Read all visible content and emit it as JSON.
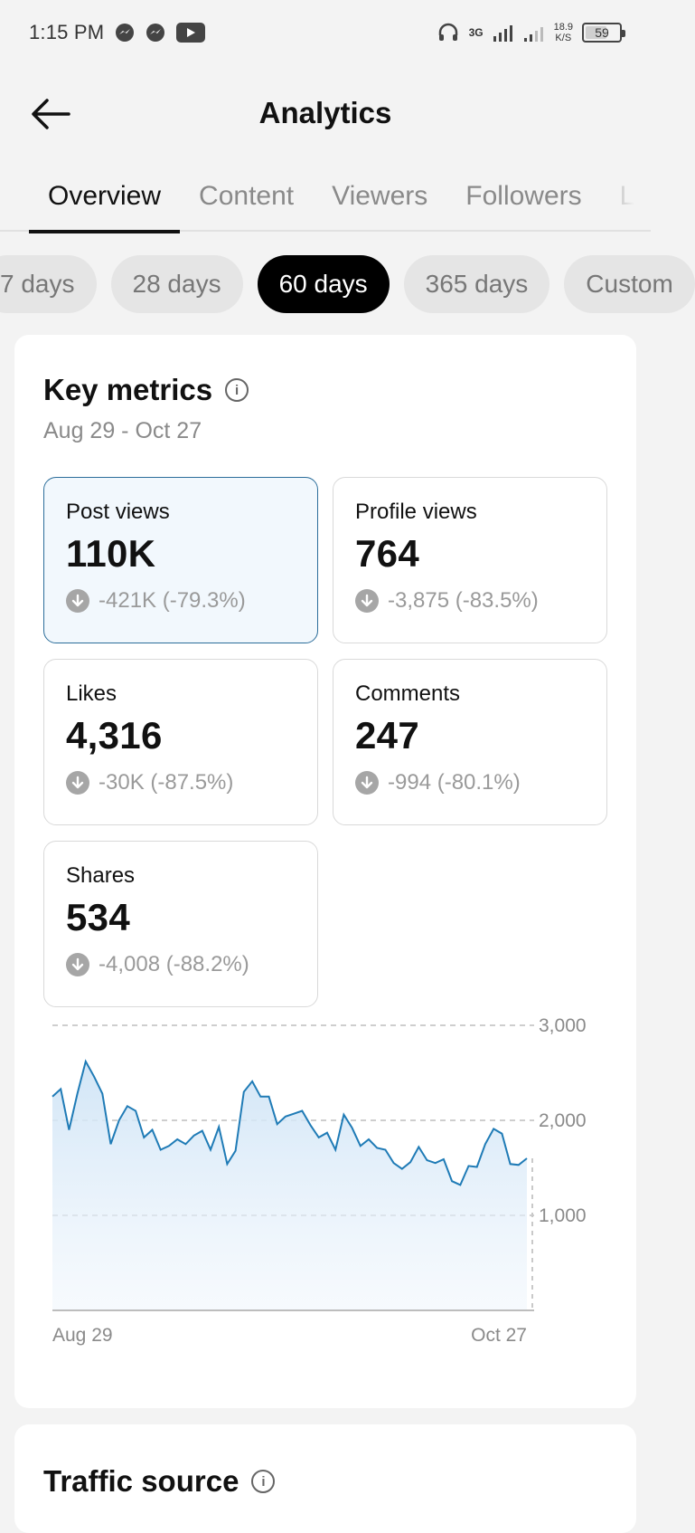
{
  "status_bar": {
    "time": "1:15 PM",
    "network": "3G",
    "net_speed_value": "18.9",
    "net_speed_unit": "K/S",
    "battery": "59"
  },
  "header": {
    "title": "Analytics"
  },
  "tabs": [
    {
      "label": "Overview",
      "active": true
    },
    {
      "label": "Content",
      "active": false
    },
    {
      "label": "Viewers",
      "active": false
    },
    {
      "label": "Followers",
      "active": false
    },
    {
      "label": "L",
      "active": false
    }
  ],
  "ranges": [
    {
      "label": "7 days",
      "active": false
    },
    {
      "label": "28 days",
      "active": false
    },
    {
      "label": "60 days",
      "active": true
    },
    {
      "label": "365 days",
      "active": false
    },
    {
      "label": "Custom",
      "active": false
    }
  ],
  "key_metrics": {
    "title": "Key metrics",
    "date_range": "Aug 29 - Oct 27",
    "items": [
      {
        "label": "Post views",
        "value": "110K",
        "change": "-421K (-79.3%)"
      },
      {
        "label": "Profile views",
        "value": "764",
        "change": "-3,875 (-83.5%)"
      },
      {
        "label": "Likes",
        "value": "4,316",
        "change": "-30K (-87.5%)"
      },
      {
        "label": "Comments",
        "value": "247",
        "change": "-994 (-80.1%)"
      },
      {
        "label": "Shares",
        "value": "534",
        "change": "-4,008 (-88.2%)"
      }
    ]
  },
  "chart_data": {
    "type": "area",
    "title": "",
    "xlabel": "",
    "ylabel": "",
    "x_start_label": "Aug 29",
    "x_end_label": "Oct 27",
    "ylim": [
      0,
      3000
    ],
    "yticks": [
      "3,000",
      "2,000",
      "1,000"
    ],
    "grid": true,
    "color": "#1f7bb6",
    "values": [
      2250,
      2330,
      1900,
      2280,
      2620,
      2460,
      2280,
      1750,
      2000,
      2150,
      2100,
      1820,
      1900,
      1690,
      1730,
      1800,
      1750,
      1840,
      1890,
      1690,
      1930,
      1540,
      1680,
      2300,
      2410,
      2250,
      2250,
      1960,
      2040,
      2070,
      2100,
      1950,
      1820,
      1870,
      1690,
      2060,
      1920,
      1730,
      1800,
      1710,
      1690,
      1550,
      1490,
      1560,
      1720,
      1580,
      1550,
      1590,
      1360,
      1320,
      1520,
      1510,
      1750,
      1910,
      1860,
      1540,
      1530,
      1600
    ]
  },
  "traffic_source": {
    "title": "Traffic source"
  }
}
